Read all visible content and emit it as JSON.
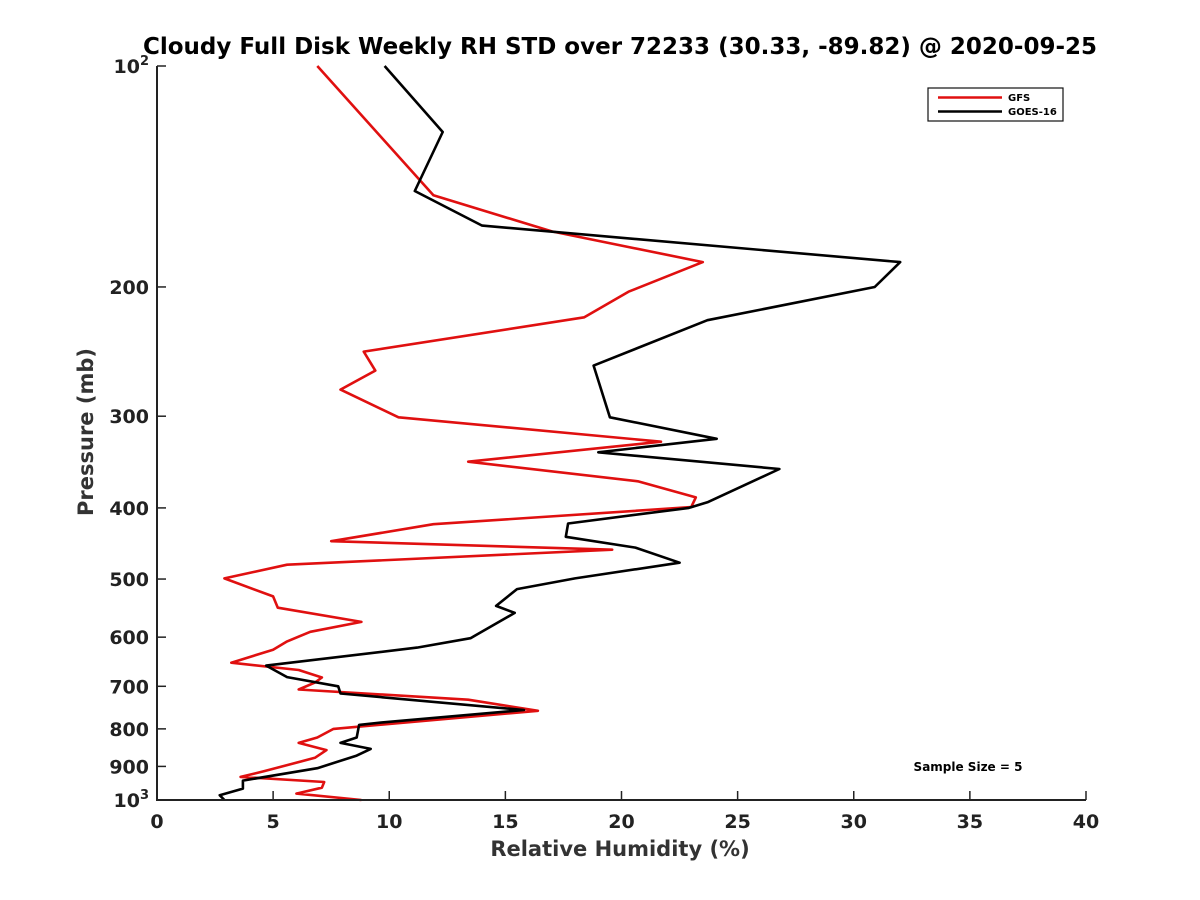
{
  "chart_data": {
    "type": "line",
    "title": "Cloudy Full Disk Weekly RH STD over 72233 (30.33, -89.82) @ 2020-09-25",
    "xlabel": "Relative Humidity (%)",
    "ylabel": "Pressure (mb)",
    "xlim": [
      0,
      40
    ],
    "ylim": [
      100,
      1000
    ],
    "yscale": "log",
    "y_reversed": true,
    "x_ticks": [
      "0",
      "5",
      "10",
      "15",
      "20",
      "25",
      "30",
      "35",
      "40"
    ],
    "y_ticks": [
      {
        "value": 100,
        "base": "10",
        "exp": "2"
      },
      {
        "value": 200,
        "label": "200"
      },
      {
        "value": 300,
        "label": "300"
      },
      {
        "value": 400,
        "label": "400"
      },
      {
        "value": 500,
        "label": "500"
      },
      {
        "value": 600,
        "label": "600"
      },
      {
        "value": 700,
        "label": "700"
      },
      {
        "value": 800,
        "label": "800"
      },
      {
        "value": 900,
        "label": "900"
      },
      {
        "value": 1000,
        "base": "10",
        "exp": "3"
      }
    ],
    "legend_position": "top-right",
    "annotation": "Sample Size = 5",
    "series": [
      {
        "name": "GFS",
        "color": "#e01010",
        "points": [
          [
            6.9,
            100
          ],
          [
            11.9,
            150
          ],
          [
            17.0,
            168
          ],
          [
            23.5,
            185
          ],
          [
            20.3,
            203
          ],
          [
            18.4,
            220
          ],
          [
            8.9,
            245
          ],
          [
            9.4,
            260
          ],
          [
            7.9,
            276
          ],
          [
            10.4,
            301
          ],
          [
            21.7,
            325
          ],
          [
            13.4,
            346
          ],
          [
            20.7,
            368
          ],
          [
            23.2,
            387
          ],
          [
            23.0,
            399
          ],
          [
            11.9,
            421
          ],
          [
            7.5,
            444
          ],
          [
            19.6,
            456
          ],
          [
            5.6,
            478
          ],
          [
            2.9,
            499
          ],
          [
            5.0,
            528
          ],
          [
            5.2,
            547
          ],
          [
            8.8,
            572
          ],
          [
            6.6,
            590
          ],
          [
            5.6,
            608
          ],
          [
            5.0,
            624
          ],
          [
            3.2,
            650
          ],
          [
            6.1,
            665
          ],
          [
            7.1,
            681
          ],
          [
            6.8,
            692
          ],
          [
            6.1,
            707
          ],
          [
            13.4,
            730
          ],
          [
            16.4,
            756
          ],
          [
            7.6,
            800
          ],
          [
            6.9,
            822
          ],
          [
            6.1,
            836
          ],
          [
            7.3,
            855
          ],
          [
            6.8,
            876
          ],
          [
            4.6,
            914
          ],
          [
            3.6,
            930
          ],
          [
            7.2,
            945
          ],
          [
            7.1,
            962
          ],
          [
            6.0,
            980
          ],
          [
            8.8,
            1000
          ]
        ]
      },
      {
        "name": "GOES-16",
        "color": "#000000",
        "points": [
          [
            9.8,
            100
          ],
          [
            12.3,
            123
          ],
          [
            11.1,
            148
          ],
          [
            14.0,
            165
          ],
          [
            32.0,
            185
          ],
          [
            30.9,
            200
          ],
          [
            23.7,
            222
          ],
          [
            18.8,
            256
          ],
          [
            19.5,
            301
          ],
          [
            24.1,
            322
          ],
          [
            19.0,
            336
          ],
          [
            26.8,
            354
          ],
          [
            23.7,
            393
          ],
          [
            22.9,
            400
          ],
          [
            17.7,
            420
          ],
          [
            17.6,
            438
          ],
          [
            20.6,
            453
          ],
          [
            22.5,
            475
          ],
          [
            18.0,
            499
          ],
          [
            15.5,
            516
          ],
          [
            14.6,
            544
          ],
          [
            15.4,
            556
          ],
          [
            13.5,
            602
          ],
          [
            11.2,
            620
          ],
          [
            4.7,
            656
          ],
          [
            5.6,
            680
          ],
          [
            7.8,
            700
          ],
          [
            7.9,
            716
          ],
          [
            15.8,
            754
          ],
          [
            9.7,
            784
          ],
          [
            8.7,
            790
          ],
          [
            8.6,
            822
          ],
          [
            7.9,
            836
          ],
          [
            9.2,
            852
          ],
          [
            8.6,
            870
          ],
          [
            6.9,
            905
          ],
          [
            3.7,
            941
          ],
          [
            3.7,
            965
          ],
          [
            2.7,
            985
          ],
          [
            2.9,
            1000
          ]
        ]
      }
    ]
  },
  "colors": {
    "axis": "#222222",
    "background": "#ffffff"
  }
}
